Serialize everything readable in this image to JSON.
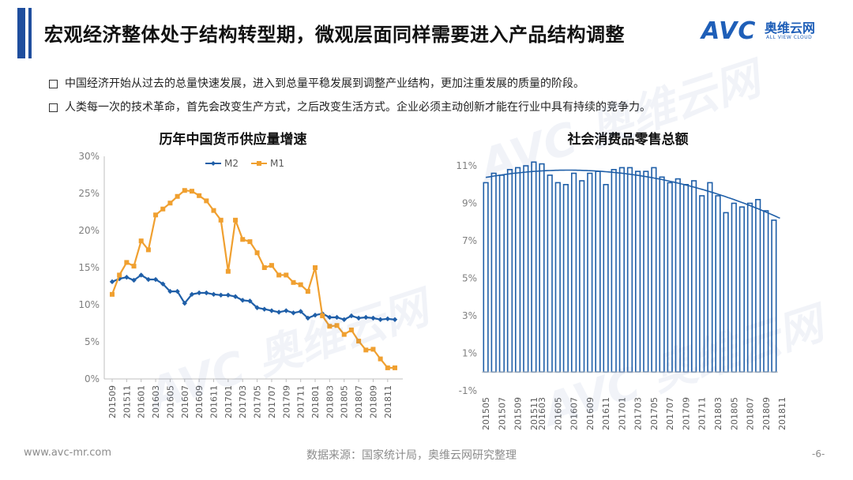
{
  "header": {
    "title": "宏观经济整体处于结构转型期，微观层面同样需要进入产品结构调整",
    "logo_text": "AVC",
    "logo_cn": "奥维云网",
    "logo_en": "ALL VIEW CLOUD",
    "accent_color": "#1f4e9e"
  },
  "bullets": [
    "中国经济开始从过去的总量快速发展，进入到总量平稳发展到调整产业结构，更加注重发展的质量的阶段。",
    "人类每一次的技术革命，首先会改变生产方式，之后改变生活方式。企业必须主动创新才能在行业中具有持续的竞争力。"
  ],
  "footer": {
    "website": "www.avc-mr.com",
    "source": "数据来源：国家统计局，奥维云网研究整理",
    "page": "-6-"
  },
  "chart_data": [
    {
      "type": "line",
      "title": "历年中国货币供应量增速",
      "xlabel": "",
      "ylabel": "",
      "ylim": [
        0,
        30
      ],
      "yticks": [
        "0%",
        "5%",
        "10%",
        "15%",
        "20%",
        "25%",
        "30%"
      ],
      "xtick_labels": [
        "201509",
        "201511",
        "201601",
        "201603",
        "201605",
        "201607",
        "201609",
        "201611",
        "201701",
        "201703",
        "201705",
        "201707",
        "201709",
        "201711",
        "201801",
        "201803",
        "201805",
        "201807",
        "201809",
        "201811"
      ],
      "legend_position": "top",
      "colors": {
        "M2": "#1f5fa8",
        "M1": "#f0a030"
      },
      "series": [
        {
          "name": "M2",
          "values": [
            13.1,
            13.5,
            13.7,
            13.3,
            14.0,
            13.4,
            13.4,
            12.8,
            11.8,
            11.8,
            10.2,
            11.4,
            11.6,
            11.6,
            11.4,
            11.3,
            11.3,
            11.1,
            10.6,
            10.5,
            9.6,
            9.4,
            9.2,
            9.0,
            9.2,
            8.9,
            9.1,
            8.2,
            8.6,
            8.8,
            8.3,
            8.3,
            8.0,
            8.5,
            8.2,
            8.3,
            8.2,
            8.0,
            8.1,
            8.0
          ]
        },
        {
          "name": "M1",
          "values": [
            11.4,
            14.0,
            15.7,
            15.2,
            18.6,
            17.4,
            22.1,
            22.9,
            23.7,
            24.6,
            25.4,
            25.3,
            24.7,
            24.0,
            22.7,
            21.4,
            14.5,
            21.4,
            18.8,
            18.5,
            17.0,
            15.0,
            15.3,
            14.0,
            14.0,
            13.0,
            12.7,
            11.8,
            15.0,
            8.5,
            7.1,
            7.2,
            6.0,
            6.6,
            5.1,
            3.9,
            4.0,
            2.7,
            1.5,
            1.5
          ]
        }
      ]
    },
    {
      "type": "bar",
      "title": "社会消费品零售总额",
      "xlabel": "",
      "ylabel": "",
      "ylim": [
        -1,
        11
      ],
      "yticks": [
        "-1%",
        "1%",
        "3%",
        "5%",
        "7%",
        "9%",
        "11%"
      ],
      "xtick_labels": [
        "201505",
        "201507",
        "201509",
        "201511",
        "201603",
        "201605",
        "201607",
        "201609",
        "201611",
        "201701",
        "201703",
        "201705",
        "201707",
        "201709",
        "201711",
        "201803",
        "201805",
        "201807",
        "201809",
        "201811"
      ],
      "trendline": "polynomial",
      "colors": {
        "bar_stroke": "#1f5fa8",
        "trend": "#1f5fa8"
      },
      "values": [
        10.1,
        10.6,
        10.5,
        10.8,
        10.9,
        11.0,
        11.2,
        11.1,
        10.5,
        10.1,
        10.0,
        10.6,
        10.2,
        10.6,
        10.7,
        10.0,
        10.8,
        10.9,
        10.9,
        10.7,
        10.7,
        10.9,
        10.4,
        10.1,
        10.3,
        10.0,
        10.2,
        9.4,
        10.1,
        9.4,
        8.5,
        9.0,
        8.8,
        9.0,
        9.2,
        8.6,
        8.1
      ]
    }
  ]
}
